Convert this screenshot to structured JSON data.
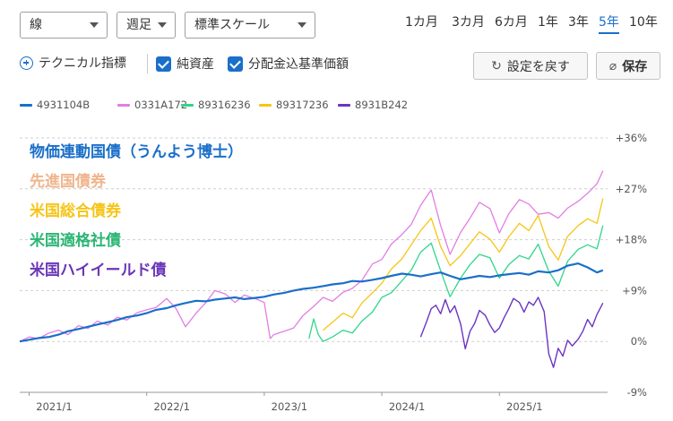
{
  "controls": {
    "chart_style": "線",
    "interval": "週足",
    "scale": "標準スケール",
    "periods": [
      "1カ月",
      "3カ月",
      "6カ月",
      "1年",
      "3年",
      "5年",
      "10年"
    ],
    "active_period": "5年",
    "technical_label": "テクニカル指標",
    "check_net_assets": "純資産",
    "check_dividend": "分配金込基準価額",
    "reset_label": "設定を戻す",
    "save_label": "保存"
  },
  "annotations": [
    {
      "text": "物価連動国債（うんよう博士）",
      "color": "#1a6fc9"
    },
    {
      "text": "先進国債券",
      "color": "#f0b48c"
    },
    {
      "text": "米国総合債券",
      "color": "#f5c518"
    },
    {
      "text": "米国適格社債",
      "color": "#2bb673"
    },
    {
      "text": "米国ハイイールド債",
      "color": "#6a35b8"
    }
  ],
  "chart_data": {
    "type": "line",
    "x_tick_labels": [
      "2021/1",
      "2022/1",
      "2023/1",
      "2024/1",
      "2025/1"
    ],
    "y_tick_labels": [
      "+36%",
      "+27%",
      "+18%",
      "+9%",
      "0%",
      "-9%"
    ],
    "y_ticks": [
      36,
      27,
      18,
      9,
      0,
      -9
    ],
    "ylim": [
      -9,
      36
    ],
    "xlim": [
      2020.92,
      2025.92
    ],
    "grid": true,
    "legend_position": "top",
    "series": [
      {
        "name": "4931104B",
        "color": "#1a6fc9",
        "width": 2.2,
        "x": [
          2020.92,
          2021.0,
          2021.08,
          2021.17,
          2021.25,
          2021.33,
          2021.42,
          2021.5,
          2021.58,
          2021.67,
          2021.75,
          2021.83,
          2021.92,
          2022.0,
          2022.08,
          2022.17,
          2022.25,
          2022.33,
          2022.42,
          2022.5,
          2022.58,
          2022.67,
          2022.75,
          2022.83,
          2022.92,
          2023.0,
          2023.08,
          2023.17,
          2023.25,
          2023.33,
          2023.42,
          2023.5,
          2023.58,
          2023.67,
          2023.75,
          2023.83,
          2023.92,
          2024.0,
          2024.08,
          2024.17,
          2024.25,
          2024.33,
          2024.42,
          2024.5,
          2024.58,
          2024.67,
          2024.75,
          2024.83,
          2024.92,
          2025.0,
          2025.08,
          2025.17,
          2025.25,
          2025.33,
          2025.42,
          2025.5,
          2025.58,
          2025.67,
          2025.75,
          2025.83,
          2025.88
        ],
        "y": [
          0,
          0.3,
          0.6,
          0.8,
          1.2,
          1.8,
          2.2,
          2.6,
          3.0,
          3.4,
          3.8,
          4.3,
          4.6,
          5.0,
          5.6,
          5.9,
          6.4,
          6.8,
          7.2,
          7.1,
          7.4,
          7.6,
          7.8,
          7.5,
          7.7,
          7.9,
          8.3,
          8.6,
          9.0,
          9.3,
          9.5,
          9.8,
          10.1,
          10.3,
          10.7,
          10.6,
          10.9,
          11.2,
          11.6,
          12.0,
          11.8,
          11.5,
          11.9,
          12.2,
          11.6,
          11.0,
          11.3,
          11.6,
          11.4,
          11.7,
          11.9,
          12.1,
          11.8,
          12.4,
          12.2,
          12.6,
          13.4,
          13.8,
          13.1,
          12.2,
          12.6
        ]
      },
      {
        "name": "0331A172",
        "color": "#e27ee3",
        "width": 1.3,
        "x": [
          2020.92,
          2021.0,
          2021.08,
          2021.17,
          2021.25,
          2021.33,
          2021.42,
          2021.5,
          2021.58,
          2021.67,
          2021.75,
          2021.83,
          2021.92,
          2022.0,
          2022.08,
          2022.17,
          2022.25,
          2022.33,
          2022.42,
          2022.5,
          2022.58,
          2022.67,
          2022.75,
          2022.83,
          2022.92,
          2023.0,
          2023.05,
          2023.08,
          2023.17,
          2023.25,
          2023.33,
          2023.42,
          2023.5,
          2023.58,
          2023.67,
          2023.75,
          2023.83,
          2023.92,
          2024.0,
          2024.08,
          2024.17,
          2024.25,
          2024.33,
          2024.42,
          2024.5,
          2024.58,
          2024.67,
          2024.75,
          2024.83,
          2024.92,
          2025.0,
          2025.08,
          2025.17,
          2025.25,
          2025.33,
          2025.42,
          2025.5,
          2025.58,
          2025.67,
          2025.75,
          2025.83,
          2025.88
        ],
        "y": [
          0,
          0.8,
          0.5,
          1.5,
          2.0,
          1.2,
          2.8,
          2.3,
          3.6,
          2.9,
          4.3,
          3.8,
          5.1,
          5.6,
          6.0,
          7.6,
          5.8,
          2.6,
          5.0,
          6.8,
          9.0,
          8.4,
          6.9,
          8.2,
          7.6,
          6.9,
          0.5,
          1.2,
          1.8,
          2.4,
          4.6,
          6.2,
          7.8,
          7.1,
          8.7,
          9.4,
          10.8,
          13.7,
          14.5,
          17.2,
          18.9,
          20.7,
          24.1,
          26.8,
          20.5,
          15.4,
          19.3,
          21.8,
          24.6,
          23.5,
          19.2,
          22.6,
          25.1,
          24.3,
          22.5,
          22.8,
          21.8,
          23.6,
          24.8,
          26.2,
          27.9,
          30.2
        ]
      },
      {
        "name": "89316236",
        "color": "#2fd68a",
        "width": 1.3,
        "x": [
          2023.38,
          2023.42,
          2023.46,
          2023.5,
          2023.58,
          2023.67,
          2023.75,
          2023.83,
          2023.92,
          2024.0,
          2024.08,
          2024.17,
          2024.25,
          2024.33,
          2024.42,
          2024.5,
          2024.58,
          2024.67,
          2024.75,
          2024.83,
          2024.92,
          2025.0,
          2025.08,
          2025.17,
          2025.25,
          2025.33,
          2025.42,
          2025.5,
          2025.58,
          2025.67,
          2025.75,
          2025.83,
          2025.88
        ],
        "y": [
          0.5,
          4.0,
          1.2,
          0,
          0.8,
          2.0,
          1.5,
          3.6,
          5.2,
          7.8,
          8.6,
          10.7,
          12.6,
          15.8,
          17.4,
          12.5,
          7.9,
          11.2,
          13.6,
          15.4,
          14.8,
          11.2,
          13.6,
          15.2,
          14.6,
          17.2,
          12.4,
          9.8,
          14.2,
          16.3,
          17.1,
          16.4,
          20.5
        ]
      },
      {
        "name": "89317236",
        "color": "#f7c514",
        "width": 1.3,
        "x": [
          2023.5,
          2023.58,
          2023.67,
          2023.75,
          2023.83,
          2023.92,
          2024.0,
          2024.08,
          2024.17,
          2024.25,
          2024.33,
          2024.42,
          2024.5,
          2024.58,
          2024.67,
          2024.75,
          2024.83,
          2024.92,
          2025.0,
          2025.08,
          2025.17,
          2025.25,
          2025.33,
          2025.42,
          2025.5,
          2025.58,
          2025.67,
          2025.75,
          2025.83,
          2025.88
        ],
        "y": [
          2.0,
          3.4,
          5.0,
          4.2,
          6.8,
          8.6,
          10.3,
          12.8,
          14.6,
          17.1,
          19.6,
          21.8,
          16.8,
          13.4,
          15.2,
          17.3,
          19.4,
          18.1,
          15.8,
          18.5,
          20.9,
          19.6,
          22.3,
          16.8,
          14.4,
          18.6,
          20.5,
          21.7,
          20.9,
          25.3
        ]
      },
      {
        "name": "8931B242",
        "color": "#6a35c2",
        "width": 1.4,
        "x": [
          2024.33,
          2024.38,
          2024.42,
          2024.46,
          2024.5,
          2024.54,
          2024.58,
          2024.62,
          2024.67,
          2024.71,
          2024.75,
          2024.79,
          2024.83,
          2024.88,
          2024.92,
          2024.96,
          2025.0,
          2025.04,
          2025.08,
          2025.12,
          2025.17,
          2025.21,
          2025.25,
          2025.29,
          2025.33,
          2025.38,
          2025.42,
          2025.46,
          2025.5,
          2025.54,
          2025.58,
          2025.62,
          2025.67,
          2025.71,
          2025.75,
          2025.79,
          2025.83,
          2025.88
        ],
        "y": [
          0.8,
          3.5,
          5.8,
          6.4,
          4.9,
          7.4,
          5.1,
          6.3,
          3.1,
          -1.3,
          1.8,
          3.2,
          5.5,
          4.6,
          2.9,
          1.6,
          2.4,
          4.2,
          5.8,
          7.6,
          6.9,
          5.2,
          7.0,
          6.4,
          7.8,
          5.3,
          -2.2,
          -4.6,
          -1.2,
          -2.6,
          0.2,
          -0.8,
          0.4,
          1.8,
          3.9,
          2.6,
          4.8,
          6.8
        ]
      }
    ]
  }
}
